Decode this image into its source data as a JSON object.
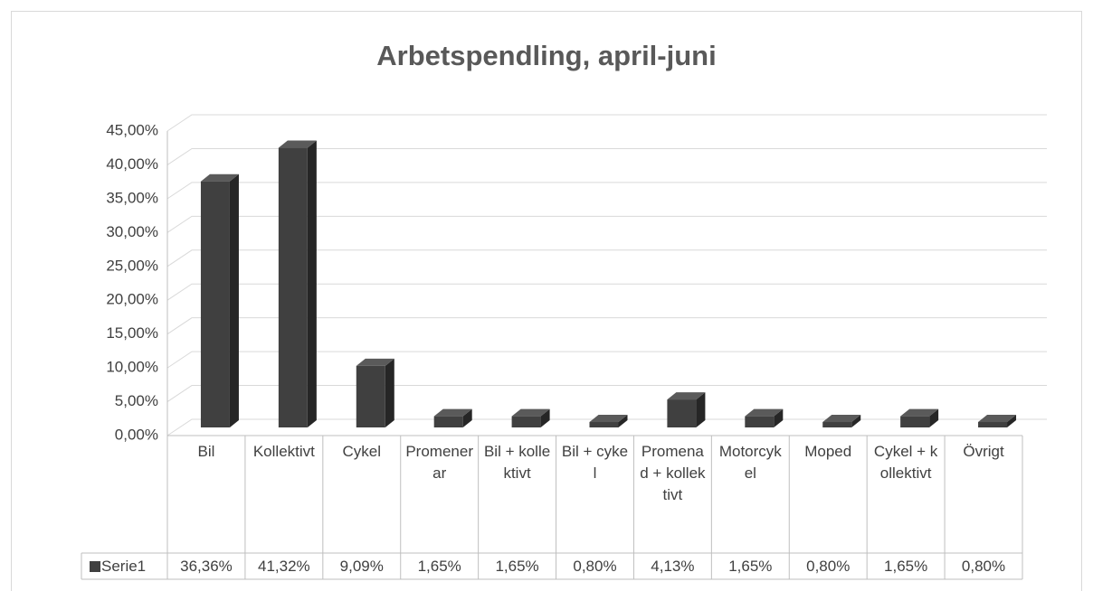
{
  "chart_data": {
    "type": "bar",
    "title": "Arbetspendling, april-juni",
    "categories": [
      "Bil",
      "Kollektivt",
      "Cykel",
      "Promenerar",
      "Bil + kollektivt",
      "Bil + cykel",
      "Promenad + kollektivt",
      "Motorcykel",
      "Moped",
      "Cykel + kollektivt",
      "Övrigt"
    ],
    "series": [
      {
        "name": "Serie1",
        "color": "#404040",
        "values": [
          36.36,
          41.32,
          9.09,
          1.65,
          1.65,
          0.8,
          4.13,
          1.65,
          0.8,
          1.65,
          0.8
        ],
        "value_labels": [
          "36,36%",
          "41,32%",
          "9,09%",
          "1,65%",
          "1,65%",
          "0,80%",
          "4,13%",
          "1,65%",
          "0,80%",
          "1,65%",
          "0,80%"
        ]
      }
    ],
    "ylim": [
      0,
      45
    ],
    "yticks": [
      {
        "value": 0,
        "label": "0,00%"
      },
      {
        "value": 5,
        "label": "5,00%"
      },
      {
        "value": 10,
        "label": "10,00%"
      },
      {
        "value": 15,
        "label": "15,00%"
      },
      {
        "value": 20,
        "label": "20,00%"
      },
      {
        "value": 25,
        "label": "25,00%"
      },
      {
        "value": 30,
        "label": "30,00%"
      },
      {
        "value": 35,
        "label": "35,00%"
      },
      {
        "value": 40,
        "label": "40,00%"
      },
      {
        "value": 45,
        "label": "45,00%"
      }
    ],
    "grid": true
  }
}
